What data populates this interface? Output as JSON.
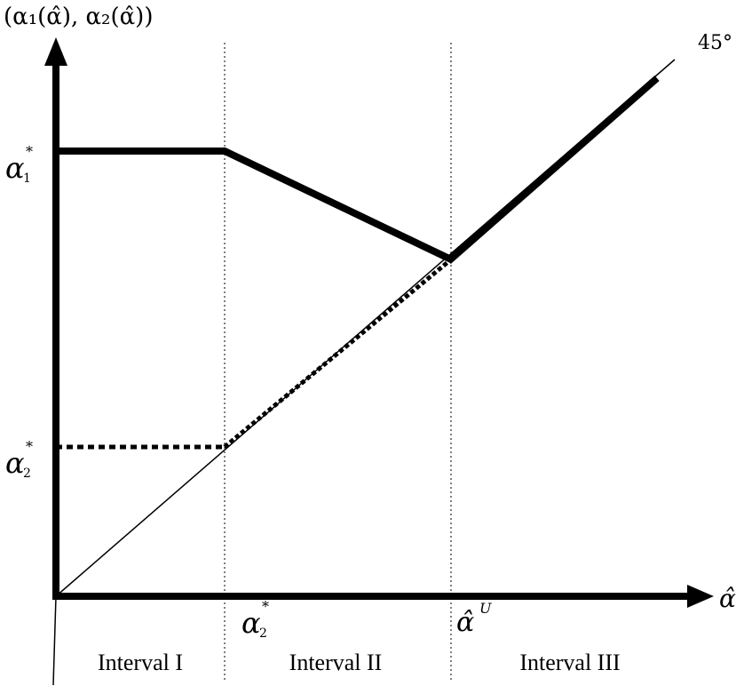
{
  "diagram": {
    "y_axis_label": "(α₁(α̂), α₂(α̂))",
    "x_axis_label": "α̂",
    "diagonal_label": "45°",
    "y_tick_alpha1": {
      "base": "α",
      "sub": "1",
      "sup": "*"
    },
    "y_tick_alpha2": {
      "base": "α",
      "sub": "2",
      "sup": "*"
    },
    "x_tick_alpha2": {
      "base": "α",
      "sub": "2",
      "sup": "*"
    },
    "x_tick_alphaU": {
      "base": "α̂",
      "sup": "U"
    },
    "intervals": [
      "Interval I",
      "Interval II",
      "Interval III"
    ]
  },
  "colors": {
    "ink": "#000000",
    "background": "#ffffff"
  }
}
